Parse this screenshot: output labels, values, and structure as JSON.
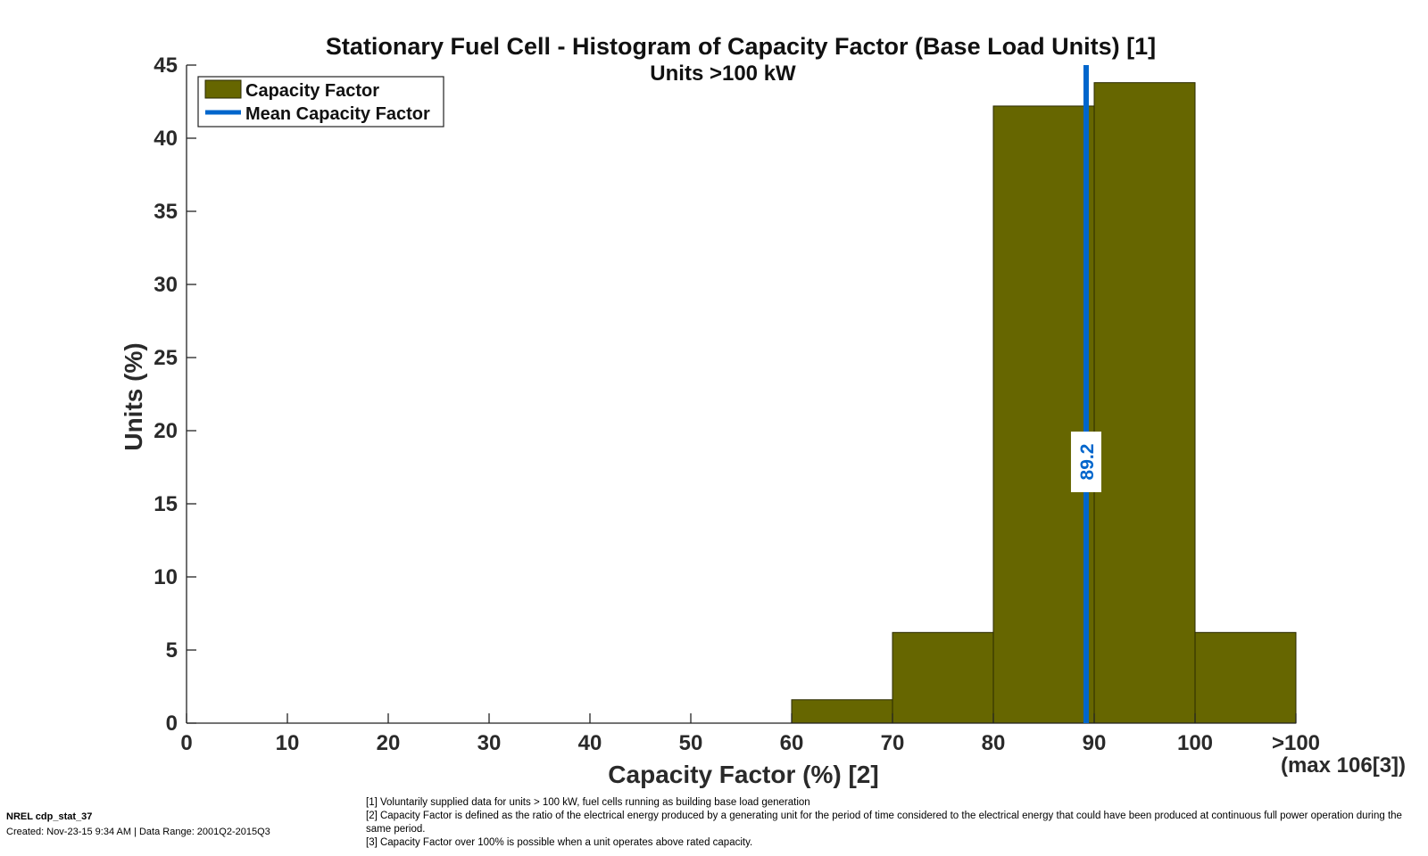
{
  "chart_data": {
    "type": "bar",
    "title": "Stationary Fuel Cell - Histogram of Capacity Factor (Base Load Units) [1]",
    "subtitle": "Units >100 kW",
    "xlabel": "Capacity Factor (%) [2]",
    "ylabel": "Units (%)",
    "x_ticks": [
      "0",
      "10",
      "20",
      "30",
      "40",
      "50",
      "60",
      "70",
      "80",
      "90",
      "100",
      ">100"
    ],
    "x_extra_label": "(max 106[3])",
    "y_ticks": [
      "0",
      "5",
      "10",
      "15",
      "20",
      "25",
      "30",
      "35",
      "40",
      "45"
    ],
    "xlim": [
      0,
      110
    ],
    "ylim": [
      0,
      45
    ],
    "bins": [
      {
        "from": 60,
        "to": 70,
        "value": 1.6
      },
      {
        "from": 70,
        "to": 80,
        "value": 6.2
      },
      {
        "from": 80,
        "to": 90,
        "value": 42.2
      },
      {
        "from": 90,
        "to": 100,
        "value": 43.8
      },
      {
        "from": 100,
        "to": 110,
        "value": 6.2
      }
    ],
    "mean": {
      "value": 89.2,
      "label": "89.2"
    },
    "legend": {
      "placement": "top-left",
      "entries": [
        "Capacity Factor",
        "Mean Capacity Factor"
      ]
    },
    "grid": false,
    "colors": {
      "bar": "#666600",
      "bar_edge": "#2a2a00",
      "mean_line": "#0066cc"
    }
  },
  "footer": {
    "id": "NREL cdp_stat_37",
    "created": "Created: Nov-23-15  9:34 AM | Data Range: 2001Q2-2015Q3"
  },
  "footnotes": [
    "[1] Voluntarily supplied data for units > 100 kW, fuel cells running as building base load generation",
    "[2] Capacity Factor is defined as the ratio of the electrical energy produced by a generating unit for the period of time considered to the electrical energy that could have been produced at continuous full power operation during the same period.",
    "[3] Capacity Factor over 100% is possible when a unit operates above rated capacity."
  ]
}
